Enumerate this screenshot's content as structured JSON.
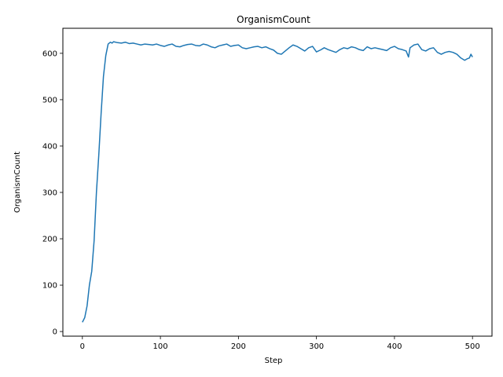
{
  "chart_data": {
    "type": "line",
    "title": "OrganismCount",
    "xlabel": "Step",
    "ylabel": "OrganismCount",
    "xlim": [
      -25,
      525
    ],
    "ylim": [
      -10,
      654
    ],
    "xticks": [
      0,
      100,
      200,
      300,
      400,
      500
    ],
    "yticks": [
      0,
      100,
      200,
      300,
      400,
      500,
      600
    ],
    "grid": false,
    "legend": "none",
    "series": [
      {
        "color": "#1f77b4",
        "x": [
          0,
          3,
          6,
          9,
          12,
          15,
          18,
          21,
          24,
          27,
          30,
          33,
          36,
          38,
          40,
          45,
          50,
          55,
          60,
          65,
          70,
          75,
          80,
          85,
          90,
          95,
          100,
          105,
          110,
          115,
          120,
          125,
          130,
          135,
          140,
          145,
          150,
          155,
          160,
          165,
          170,
          175,
          180,
          185,
          190,
          195,
          200,
          205,
          210,
          215,
          220,
          225,
          230,
          235,
          240,
          245,
          250,
          255,
          260,
          265,
          270,
          275,
          280,
          285,
          290,
          295,
          300,
          305,
          310,
          315,
          320,
          325,
          330,
          335,
          340,
          345,
          350,
          355,
          360,
          365,
          370,
          375,
          380,
          385,
          390,
          395,
          400,
          405,
          410,
          415,
          418,
          420,
          425,
          430,
          435,
          440,
          445,
          450,
          455,
          460,
          465,
          470,
          475,
          480,
          485,
          490,
          493,
          496,
          498,
          500
        ],
        "y": [
          20,
          30,
          55,
          100,
          130,
          195,
          300,
          380,
          470,
          550,
          595,
          620,
          624,
          622,
          625,
          623,
          622,
          624,
          621,
          622,
          620,
          618,
          620,
          619,
          618,
          620,
          617,
          615,
          618,
          620,
          615,
          614,
          617,
          619,
          620,
          617,
          616,
          620,
          618,
          614,
          612,
          616,
          618,
          620,
          615,
          617,
          618,
          612,
          610,
          612,
          614,
          615,
          612,
          614,
          610,
          607,
          600,
          598,
          605,
          612,
          618,
          615,
          610,
          605,
          612,
          615,
          603,
          607,
          612,
          608,
          605,
          602,
          608,
          612,
          610,
          614,
          612,
          608,
          606,
          614,
          610,
          612,
          610,
          608,
          606,
          612,
          615,
          610,
          608,
          605,
          592,
          612,
          618,
          620,
          608,
          605,
          610,
          612,
          602,
          598,
          602,
          604,
          602,
          598,
          590,
          585,
          588,
          590,
          598,
          592
        ]
      }
    ]
  }
}
